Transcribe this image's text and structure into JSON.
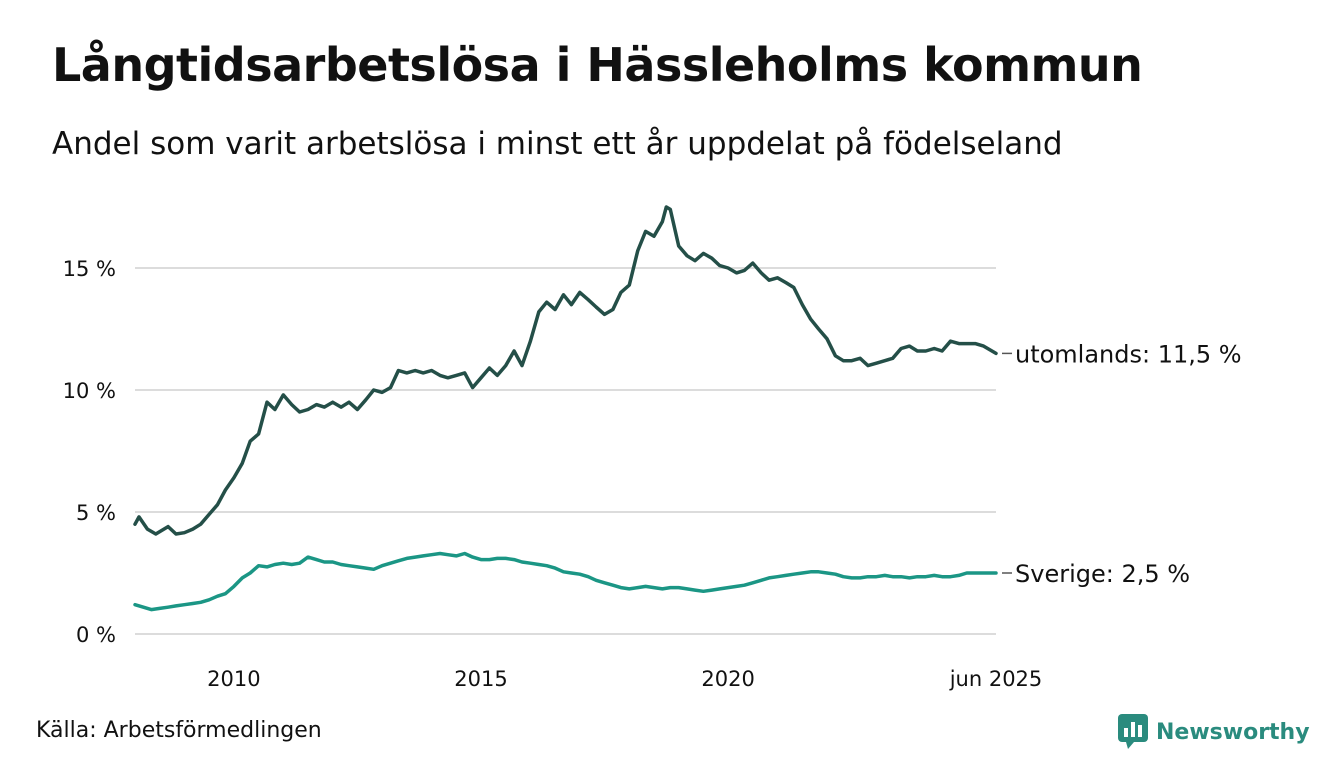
{
  "header": {
    "title": "Långtidsarbetslösa i Hässleholms kommun",
    "subtitle": "Andel som varit arbetslösa i minst ett år uppdelat på födelseland"
  },
  "footer": {
    "source": "Källa: Arbetsförmedlingen",
    "brand": "Newsworthy"
  },
  "colors": {
    "utomlands": "#244f48",
    "sverige": "#1b9685",
    "grid": "#dcdcdc",
    "brand": "#2a8b7e"
  },
  "chart_data": {
    "type": "line",
    "title": "Långtidsarbetslösa i Hässleholms kommun",
    "subtitle": "Andel som varit arbetslösa i minst ett år uppdelat på födelseland",
    "xlabel": "",
    "ylabel": "",
    "xlim": [
      2008.0,
      2025.42
    ],
    "ylim": [
      0,
      17.5
    ],
    "grid": "horizontal",
    "yticks": [
      0,
      5,
      10,
      15
    ],
    "ytick_labels": [
      "0 %",
      "5 %",
      "10 %",
      "15 %"
    ],
    "xticks": [
      2010,
      2015,
      2020,
      2025.42
    ],
    "xtick_labels": [
      "2010",
      "2015",
      "2020",
      "jun 2025"
    ],
    "series": [
      {
        "name": "utomlands",
        "end_label": "utomlands: 11,5 %",
        "color": "#244f48",
        "points": [
          [
            2008.0,
            4.5
          ],
          [
            2008.08,
            4.8
          ],
          [
            2008.25,
            4.3
          ],
          [
            2008.42,
            4.1
          ],
          [
            2008.67,
            4.4
          ],
          [
            2008.83,
            4.1
          ],
          [
            2009.0,
            4.15
          ],
          [
            2009.17,
            4.3
          ],
          [
            2009.33,
            4.5
          ],
          [
            2009.5,
            4.9
          ],
          [
            2009.67,
            5.3
          ],
          [
            2009.83,
            5.9
          ],
          [
            2010.0,
            6.4
          ],
          [
            2010.17,
            7.0
          ],
          [
            2010.33,
            7.9
          ],
          [
            2010.5,
            8.2
          ],
          [
            2010.67,
            9.5
          ],
          [
            2010.83,
            9.2
          ],
          [
            2011.0,
            9.8
          ],
          [
            2011.17,
            9.4
          ],
          [
            2011.33,
            9.1
          ],
          [
            2011.5,
            9.2
          ],
          [
            2011.67,
            9.4
          ],
          [
            2011.83,
            9.3
          ],
          [
            2012.0,
            9.5
          ],
          [
            2012.17,
            9.3
          ],
          [
            2012.33,
            9.5
          ],
          [
            2012.5,
            9.2
          ],
          [
            2012.67,
            9.6
          ],
          [
            2012.83,
            10.0
          ],
          [
            2013.0,
            9.9
          ],
          [
            2013.17,
            10.1
          ],
          [
            2013.33,
            10.8
          ],
          [
            2013.5,
            10.7
          ],
          [
            2013.67,
            10.8
          ],
          [
            2013.83,
            10.7
          ],
          [
            2014.0,
            10.8
          ],
          [
            2014.17,
            10.6
          ],
          [
            2014.33,
            10.5
          ],
          [
            2014.5,
            10.6
          ],
          [
            2014.67,
            10.7
          ],
          [
            2014.83,
            10.1
          ],
          [
            2015.0,
            10.5
          ],
          [
            2015.17,
            10.9
          ],
          [
            2015.33,
            10.6
          ],
          [
            2015.5,
            11.0
          ],
          [
            2015.67,
            11.6
          ],
          [
            2015.83,
            11.0
          ],
          [
            2016.0,
            12.0
          ],
          [
            2016.17,
            13.2
          ],
          [
            2016.33,
            13.6
          ],
          [
            2016.5,
            13.3
          ],
          [
            2016.67,
            13.9
          ],
          [
            2016.83,
            13.5
          ],
          [
            2017.0,
            14.0
          ],
          [
            2017.17,
            13.7
          ],
          [
            2017.33,
            13.4
          ],
          [
            2017.5,
            13.1
          ],
          [
            2017.67,
            13.3
          ],
          [
            2017.83,
            14.0
          ],
          [
            2018.0,
            14.3
          ],
          [
            2018.17,
            15.7
          ],
          [
            2018.33,
            16.5
          ],
          [
            2018.5,
            16.3
          ],
          [
            2018.67,
            16.9
          ],
          [
            2018.75,
            17.5
          ],
          [
            2018.83,
            17.4
          ],
          [
            2019.0,
            15.9
          ],
          [
            2019.17,
            15.5
          ],
          [
            2019.33,
            15.3
          ],
          [
            2019.5,
            15.6
          ],
          [
            2019.67,
            15.4
          ],
          [
            2019.83,
            15.1
          ],
          [
            2020.0,
            15.0
          ],
          [
            2020.17,
            14.8
          ],
          [
            2020.33,
            14.9
          ],
          [
            2020.5,
            15.2
          ],
          [
            2020.67,
            14.8
          ],
          [
            2020.83,
            14.5
          ],
          [
            2021.0,
            14.6
          ],
          [
            2021.17,
            14.4
          ],
          [
            2021.33,
            14.2
          ],
          [
            2021.5,
            13.5
          ],
          [
            2021.67,
            12.9
          ],
          [
            2021.83,
            12.5
          ],
          [
            2022.0,
            12.1
          ],
          [
            2022.17,
            11.4
          ],
          [
            2022.33,
            11.2
          ],
          [
            2022.5,
            11.2
          ],
          [
            2022.67,
            11.3
          ],
          [
            2022.83,
            11.0
          ],
          [
            2023.0,
            11.1
          ],
          [
            2023.17,
            11.2
          ],
          [
            2023.33,
            11.3
          ],
          [
            2023.5,
            11.7
          ],
          [
            2023.67,
            11.8
          ],
          [
            2023.83,
            11.6
          ],
          [
            2024.0,
            11.6
          ],
          [
            2024.17,
            11.7
          ],
          [
            2024.33,
            11.6
          ],
          [
            2024.5,
            12.0
          ],
          [
            2024.67,
            11.9
          ],
          [
            2024.83,
            11.9
          ],
          [
            2025.0,
            11.9
          ],
          [
            2025.17,
            11.8
          ],
          [
            2025.42,
            11.5
          ]
        ]
      },
      {
        "name": "Sverige",
        "end_label": "Sverige:  2,5 %",
        "color": "#1b9685",
        "points": [
          [
            2008.0,
            1.2
          ],
          [
            2008.17,
            1.1
          ],
          [
            2008.33,
            1.0
          ],
          [
            2008.5,
            1.05
          ],
          [
            2008.67,
            1.1
          ],
          [
            2008.83,
            1.15
          ],
          [
            2009.0,
            1.2
          ],
          [
            2009.17,
            1.25
          ],
          [
            2009.33,
            1.3
          ],
          [
            2009.5,
            1.4
          ],
          [
            2009.67,
            1.55
          ],
          [
            2009.83,
            1.65
          ],
          [
            2010.0,
            1.95
          ],
          [
            2010.17,
            2.3
          ],
          [
            2010.33,
            2.5
          ],
          [
            2010.5,
            2.8
          ],
          [
            2010.67,
            2.75
          ],
          [
            2010.83,
            2.85
          ],
          [
            2011.0,
            2.9
          ],
          [
            2011.17,
            2.85
          ],
          [
            2011.33,
            2.9
          ],
          [
            2011.5,
            3.15
          ],
          [
            2011.67,
            3.05
          ],
          [
            2011.83,
            2.95
          ],
          [
            2012.0,
            2.95
          ],
          [
            2012.17,
            2.85
          ],
          [
            2012.33,
            2.8
          ],
          [
            2012.5,
            2.75
          ],
          [
            2012.67,
            2.7
          ],
          [
            2012.83,
            2.65
          ],
          [
            2013.0,
            2.8
          ],
          [
            2013.17,
            2.9
          ],
          [
            2013.33,
            3.0
          ],
          [
            2013.5,
            3.1
          ],
          [
            2013.67,
            3.15
          ],
          [
            2013.83,
            3.2
          ],
          [
            2014.0,
            3.25
          ],
          [
            2014.17,
            3.3
          ],
          [
            2014.33,
            3.25
          ],
          [
            2014.5,
            3.2
          ],
          [
            2014.67,
            3.3
          ],
          [
            2014.83,
            3.15
          ],
          [
            2015.0,
            3.05
          ],
          [
            2015.17,
            3.05
          ],
          [
            2015.33,
            3.1
          ],
          [
            2015.5,
            3.1
          ],
          [
            2015.67,
            3.05
          ],
          [
            2015.83,
            2.95
          ],
          [
            2016.0,
            2.9
          ],
          [
            2016.17,
            2.85
          ],
          [
            2016.33,
            2.8
          ],
          [
            2016.5,
            2.7
          ],
          [
            2016.67,
            2.55
          ],
          [
            2016.83,
            2.5
          ],
          [
            2017.0,
            2.45
          ],
          [
            2017.17,
            2.35
          ],
          [
            2017.33,
            2.2
          ],
          [
            2017.5,
            2.1
          ],
          [
            2017.67,
            2.0
          ],
          [
            2017.83,
            1.9
          ],
          [
            2018.0,
            1.85
          ],
          [
            2018.17,
            1.9
          ],
          [
            2018.33,
            1.95
          ],
          [
            2018.5,
            1.9
          ],
          [
            2018.67,
            1.85
          ],
          [
            2018.83,
            1.9
          ],
          [
            2019.0,
            1.9
          ],
          [
            2019.17,
            1.85
          ],
          [
            2019.33,
            1.8
          ],
          [
            2019.5,
            1.75
          ],
          [
            2019.67,
            1.8
          ],
          [
            2019.83,
            1.85
          ],
          [
            2020.0,
            1.9
          ],
          [
            2020.17,
            1.95
          ],
          [
            2020.33,
            2.0
          ],
          [
            2020.5,
            2.1
          ],
          [
            2020.67,
            2.2
          ],
          [
            2020.83,
            2.3
          ],
          [
            2021.0,
            2.35
          ],
          [
            2021.17,
            2.4
          ],
          [
            2021.33,
            2.45
          ],
          [
            2021.5,
            2.5
          ],
          [
            2021.67,
            2.55
          ],
          [
            2021.83,
            2.55
          ],
          [
            2022.0,
            2.5
          ],
          [
            2022.17,
            2.45
          ],
          [
            2022.33,
            2.35
          ],
          [
            2022.5,
            2.3
          ],
          [
            2022.67,
            2.3
          ],
          [
            2022.83,
            2.35
          ],
          [
            2023.0,
            2.35
          ],
          [
            2023.17,
            2.4
          ],
          [
            2023.33,
            2.35
          ],
          [
            2023.5,
            2.35
          ],
          [
            2023.67,
            2.3
          ],
          [
            2023.83,
            2.35
          ],
          [
            2024.0,
            2.35
          ],
          [
            2024.17,
            2.4
          ],
          [
            2024.33,
            2.35
          ],
          [
            2024.5,
            2.35
          ],
          [
            2024.67,
            2.4
          ],
          [
            2024.83,
            2.5
          ],
          [
            2025.0,
            2.5
          ],
          [
            2025.17,
            2.5
          ],
          [
            2025.42,
            2.5
          ]
        ]
      }
    ]
  }
}
